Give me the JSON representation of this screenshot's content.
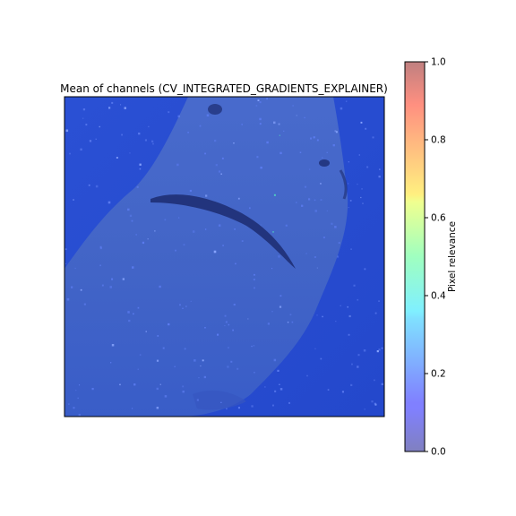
{
  "chart_data": {
    "type": "heatmap",
    "title": "Mean of channels (CV_INTEGRATED_GRADIENTS_EXPLAINER)",
    "image_subject": "shark",
    "colormap": "jet",
    "overlay_alpha": 0.5,
    "axes_visible": false,
    "colorbar": {
      "label": "Pixel relevance",
      "range": [
        0.0,
        1.0
      ],
      "ticks": [
        0.0,
        0.2,
        0.4,
        0.6,
        0.8,
        1.0
      ],
      "tick_labels": [
        "0.0",
        "0.2",
        "0.4",
        "0.6",
        "0.8",
        "1.0"
      ],
      "position": "right"
    }
  },
  "colors": {
    "background": "#ffffff",
    "water_blue": "#2a52d6",
    "shark_blue": "#4266c8",
    "mouth_dark": "#1a2a6a",
    "speckle": "#6a86f0"
  }
}
